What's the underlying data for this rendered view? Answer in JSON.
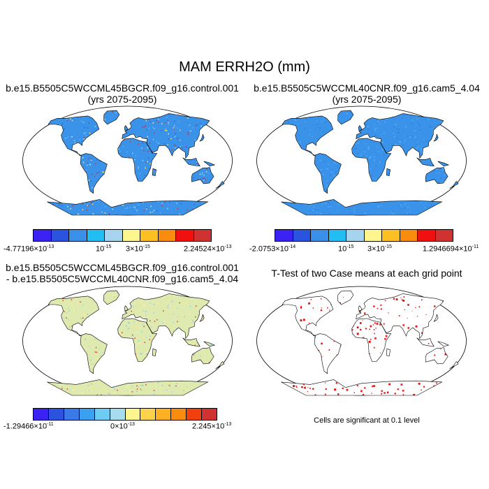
{
  "figure": {
    "title": "MAM ERRH2O (mm)"
  },
  "panels": [
    {
      "id": "p1",
      "title_line1": "b.e15.B5505C5WCCML45BGCR.f09_g16.control.001",
      "title_line2": "(yrs 2075-2095)",
      "base_color": "#3a93e8",
      "speckle_colors": [
        "#5ab4ff",
        "#1f6fd6",
        "#8fd0f0",
        "#7b3fb5",
        "#c0393b",
        "#f0e27a"
      ],
      "colorbar": {
        "colors": [
          "#3c22f2",
          "#2a54e0",
          "#3a8fe8",
          "#22bdf2",
          "#a6d4ee",
          "#fff58e",
          "#fcc022",
          "#f98b0f",
          "#f01010",
          "#d03232"
        ],
        "labels": {
          "min_mant": "-4.77196×10",
          "min_exp": "-13",
          "tick1_mant": "10",
          "tick1_exp": "-15",
          "tick2_mant": "3×10",
          "tick2_exp": "-15",
          "max_mant": "2.24524×10",
          "max_exp": "-13"
        }
      }
    },
    {
      "id": "p2",
      "title_line1": "b.e15.B5505C5WCCML40CNR.f09_g16.cam5_4.04",
      "title_line2": "(yrs 2075-2095)",
      "base_color": "#3a93e8",
      "speckle_colors": [
        "#5ab4ff",
        "#2a7ee0",
        "#4aa8f5"
      ],
      "colorbar": {
        "colors": [
          "#3c22f2",
          "#2a54e0",
          "#3a8fe8",
          "#22bdf2",
          "#a6d4ee",
          "#fff58e",
          "#fcc022",
          "#f98b0f",
          "#f01010",
          "#d03232"
        ],
        "labels": {
          "min_mant": "-2.0753×10",
          "min_exp": "-14",
          "tick1_mant": "10",
          "tick1_exp": "-15",
          "tick2_mant": "3×10",
          "tick2_exp": "-15",
          "max_mant": "1.2946694×10",
          "max_exp": "-11"
        }
      }
    },
    {
      "id": "p3",
      "title_line1": "b.e15.B5505C5WCCML45BGCR.f09_g16.control.001",
      "title_line2": "- b.e15.B5505C5WCCML40CNR.f09_g16.cam5_4.04",
      "base_color": "#dfeab0",
      "speckle_colors": [
        "#a6d4ee",
        "#fff58e",
        "#8fc8e8",
        "#f0e27a",
        "#d05030"
      ],
      "colorbar": {
        "colors": [
          "#3c22f2",
          "#2a54e0",
          "#3a7ae8",
          "#3aa0f0",
          "#6ecbf4",
          "#a6dcee",
          "#fff58e",
          "#fcd34a",
          "#fcb022",
          "#f98b0f",
          "#f04010",
          "#d03232"
        ],
        "labels": {
          "min_mant": "-1.29466×10",
          "min_exp": "-11",
          "mid_mant": "0×10",
          "mid_exp": "-13",
          "max_mant": "2.245×10",
          "max_exp": "-13"
        }
      }
    },
    {
      "id": "p4",
      "title_line1": "T-Test of two Case means at each grid point",
      "base_color": "#ffffff",
      "speckle_colors": [
        "#e01010",
        "#f02020"
      ],
      "footnote": "Cells are significant at 0.1 level"
    }
  ]
}
